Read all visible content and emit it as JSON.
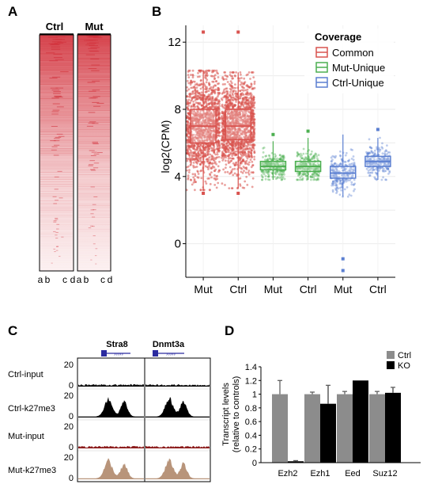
{
  "panels": {
    "a": {
      "label": "A",
      "heatmaps": [
        {
          "title": "Ctrl",
          "bottom_labels": [
            "a",
            "b",
            "c",
            "d"
          ]
        },
        {
          "title": "Mut",
          "bottom_labels": [
            "a",
            "b",
            "c",
            "d"
          ]
        }
      ],
      "colors": {
        "signal": "#d2323c",
        "background": "#ffffff"
      }
    },
    "b": {
      "label": "B",
      "colors": {
        "Common": "#d9534f",
        "Mut-Unique": "#4caf50",
        "Ctrl-Unique": "#5b7fd1"
      }
    },
    "c": {
      "label": "C",
      "genes": [
        "Stra8",
        "Dnmt3a"
      ],
      "gene_color": "#2b2b9f",
      "tracks": [
        {
          "name": "Ctrl-input",
          "ymax": "20",
          "ymin": "0",
          "fill": "#000000",
          "signal": "low"
        },
        {
          "name": "Ctrl-k27me3",
          "ymax": "20",
          "ymin": "0",
          "fill": "#000000",
          "signal": "high"
        },
        {
          "name": "Mut-input",
          "ymax": "20",
          "ymin": "0",
          "fill": "#8b1a1a",
          "signal": "low"
        },
        {
          "name": "Mut-k27me3",
          "ymax": "20",
          "ymin": "0",
          "fill": "#b8947a",
          "signal": "high"
        }
      ]
    },
    "d": {
      "label": "D"
    }
  },
  "chart_data": [
    {
      "type": "box",
      "panel": "B",
      "title": "",
      "xlabel": "",
      "ylabel": "log2(CPM)",
      "ylim": [
        -2,
        13
      ],
      "yticks": [
        0,
        4,
        8,
        12
      ],
      "legend_title": "Coverage",
      "legend_position": "top-right",
      "grid": true,
      "categories": [
        "Mut",
        "Ctrl",
        "Mut",
        "Ctrl",
        "Mut",
        "Ctrl"
      ],
      "boxes": [
        {
          "label": "Mut",
          "group": "Common",
          "min": 3.2,
          "q1": 6.0,
          "median": 7.0,
          "q3": 8.0,
          "max": 10.3,
          "outliers": [
            12.6,
            3.0
          ]
        },
        {
          "label": "Ctrl",
          "group": "Common",
          "min": 3.3,
          "q1": 6.2,
          "median": 7.0,
          "q3": 8.0,
          "max": 10.2,
          "outliers": [
            12.6,
            3.0
          ]
        },
        {
          "label": "Mut",
          "group": "Mut-Unique",
          "min": 3.8,
          "q1": 4.4,
          "median": 4.6,
          "q3": 4.9,
          "max": 6.1,
          "outliers": [
            6.5
          ]
        },
        {
          "label": "Ctrl",
          "group": "Mut-Unique",
          "min": 3.8,
          "q1": 4.3,
          "median": 4.6,
          "q3": 4.9,
          "max": 6.3,
          "outliers": [
            6.7
          ]
        },
        {
          "label": "Mut",
          "group": "Ctrl-Unique",
          "min": 2.8,
          "q1": 3.9,
          "median": 4.2,
          "q3": 4.6,
          "max": 6.5,
          "outliers": [
            -1.6,
            -0.9
          ]
        },
        {
          "label": "Ctrl",
          "group": "Ctrl-Unique",
          "min": 3.8,
          "q1": 4.6,
          "median": 4.9,
          "q3": 5.2,
          "max": 6.3,
          "outliers": [
            6.8
          ]
        }
      ]
    },
    {
      "type": "bar",
      "panel": "D",
      "title": "",
      "xlabel": "",
      "ylabel": "Transcript levels\n(relative to controls)",
      "ylim": [
        0,
        1.4
      ],
      "yticks": [
        "0",
        "0.2",
        "0.4",
        "0.6",
        "0.8",
        "1",
        "1.2",
        "1.4"
      ],
      "legend_position": "top-right",
      "categories": [
        "Ezh2",
        "Ezh1",
        "Eed",
        "Suz12"
      ],
      "series": [
        {
          "name": "Ctrl",
          "color": "#8c8c8c",
          "values": [
            1.0,
            1.0,
            1.0,
            1.0
          ],
          "errors": [
            0.2,
            0.03,
            0.04,
            0.04
          ]
        },
        {
          "name": "KO",
          "color": "#000000",
          "values": [
            0.02,
            0.86,
            1.2,
            1.02
          ],
          "errors": [
            0.01,
            0.27,
            0.0,
            0.08
          ]
        }
      ]
    }
  ]
}
